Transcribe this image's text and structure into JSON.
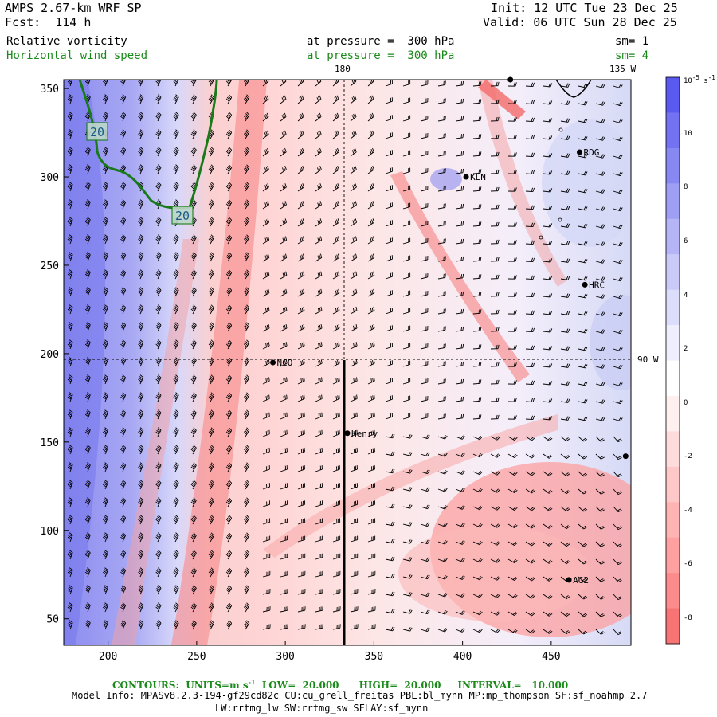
{
  "header": {
    "model": "AMPS 2.67-km WRF SP",
    "forecast": "Fcst:  114 h",
    "init": "Init: 12 UTC Tue 23 Dec 25",
    "valid": "Valid: 06 UTC Sun 28 Dec 25",
    "field1_name": "Relative vorticity",
    "field1_level": "at pressure =  300 hPa",
    "field1_sm": "sm= 1",
    "field2_name": "Horizontal wind speed",
    "field2_level": "at pressure =  300 hPa",
    "field2_sm": "sm= 4"
  },
  "map": {
    "top_labels": [
      "180",
      "135 W"
    ],
    "right_label": "90 W",
    "x_ticks": [
      "200",
      "250",
      "300",
      "350",
      "400",
      "450"
    ],
    "y_ticks": [
      "50",
      "100",
      "150",
      "200",
      "250",
      "300",
      "350"
    ],
    "stations": [
      {
        "name": "RDG",
        "x": 466,
        "y": 314
      },
      {
        "name": "KLN",
        "x": 402,
        "y": 300
      },
      {
        "name": "HRC",
        "x": 469,
        "y": 239
      },
      {
        "name": "NCO",
        "x": 293,
        "y": 195
      },
      {
        "name": "Henry",
        "x": 335,
        "y": 155
      },
      {
        "name": "AG2",
        "x": 460,
        "y": 72
      },
      {
        "name": "",
        "x": 492,
        "y": 142
      },
      {
        "name": "",
        "x": 427,
        "y": 355
      }
    ],
    "contour_labels": [
      "20",
      "20"
    ]
  },
  "colorbar": {
    "unit": "10",
    "unit_exp": "-5",
    "unit_suffix": "s",
    "unit_suffix_exp": "-1",
    "labels": [
      "10",
      "8",
      "6",
      "4",
      "2",
      "0",
      "-2",
      "-4",
      "-6",
      "-8"
    ],
    "colors": [
      "#5a5af0",
      "#7272f2",
      "#8888f3",
      "#9e9ef5",
      "#b4b4f7",
      "#cacaf9",
      "#dcdcfb",
      "#eeeefd",
      "#ffffff",
      "#fff0f0",
      "#ffdcdc",
      "#ffc8c8",
      "#ffb4b4",
      "#ffa0a0",
      "#fc8c8c",
      "#f87474"
    ]
  },
  "footer": {
    "contours": "CONTOURS:  UNITS=m s",
    "contours_exp": "-1",
    "contours_rest": "  LOW=  20.000      HIGH=  20.000     INTERVAL=   10.000",
    "info1": "Model Info: MPASv8.2.3-194-gf29cd82c CU:cu_grell_freitas PBL:bl_mynn MP:mp_thompson SF:sf_noahmp 2.7",
    "info2": "LW:rrtmg_lw SW:rrtmg_sw SFLAY:sf_mynn"
  }
}
